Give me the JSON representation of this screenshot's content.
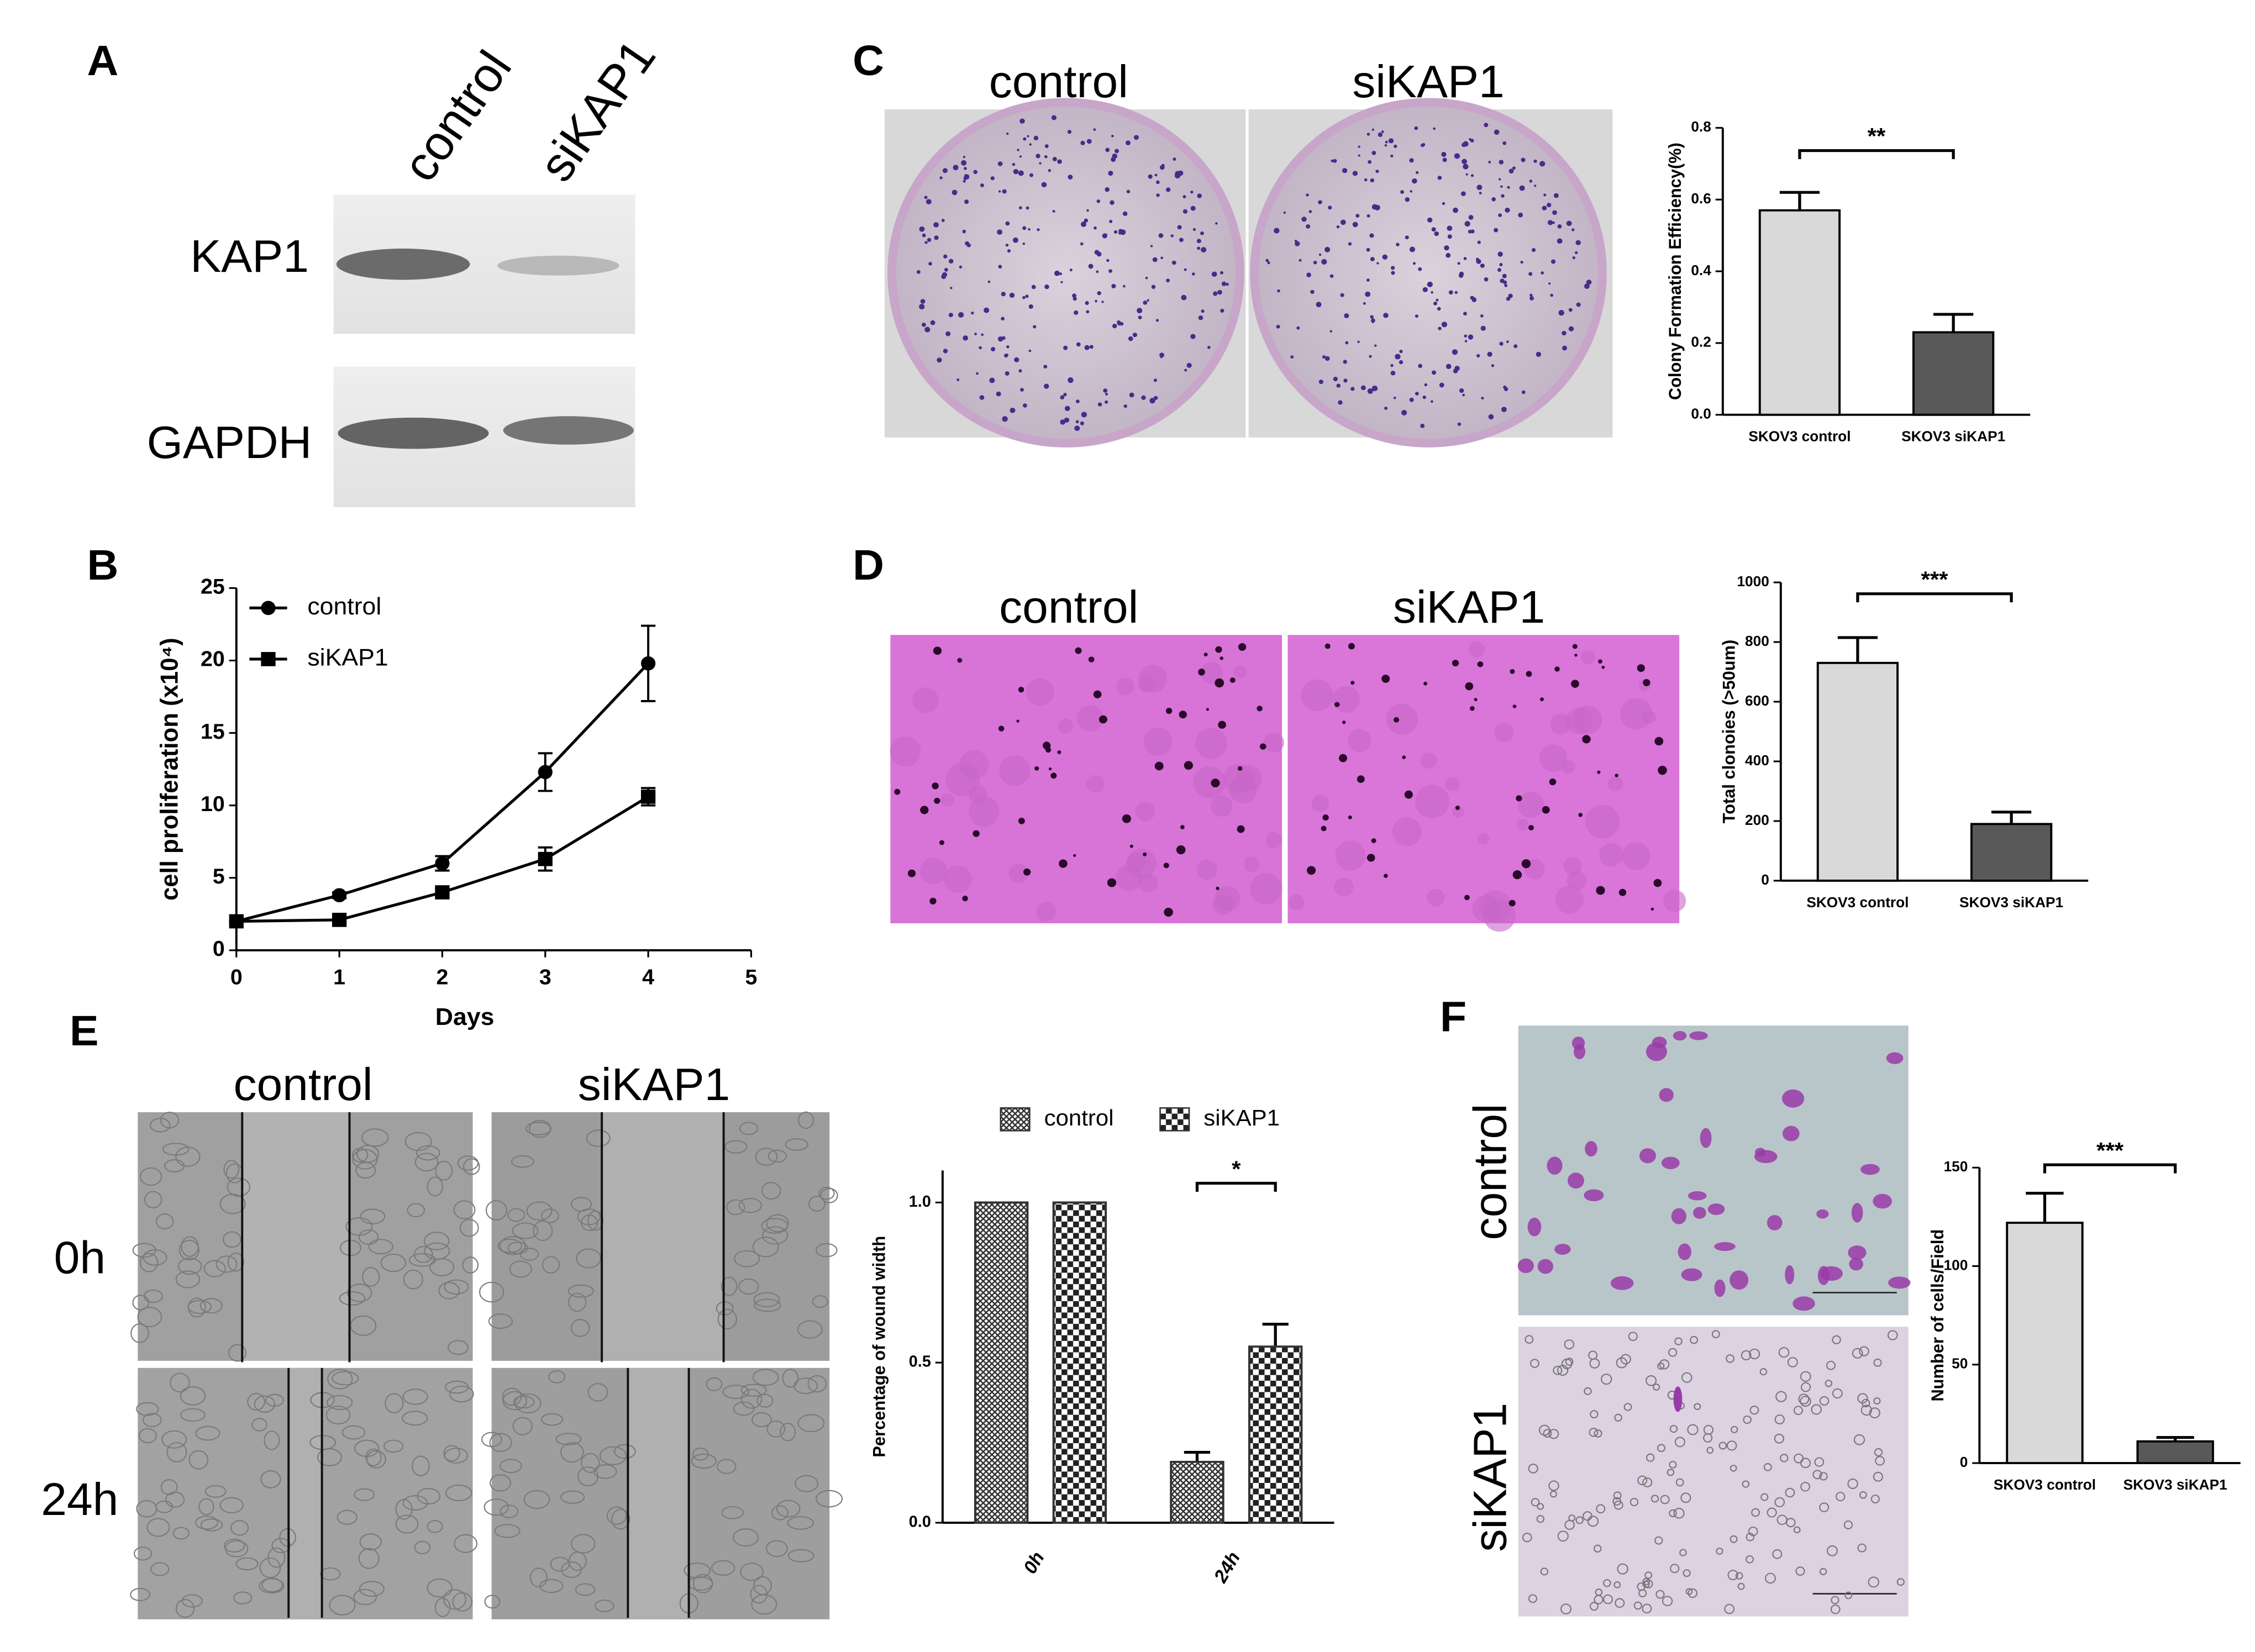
{
  "panel_labels": [
    "A",
    "B",
    "C",
    "D",
    "E",
    "F"
  ],
  "images": {
    "western_blot": {
      "lanes": [
        "control",
        "siKAP1"
      ],
      "bands": [
        "KAP1",
        "GAPDH"
      ]
    },
    "colony_plates": {
      "conditions": [
        "control",
        "siKAP1"
      ]
    },
    "soft_agar": {
      "conditions": [
        "control",
        "siKAP1"
      ]
    },
    "wound_healing": {
      "conditions": [
        "control",
        "siKAP1"
      ],
      "times": [
        "0h",
        "24h"
      ]
    },
    "transwell": {
      "conditions": [
        "control",
        "siKAP1"
      ]
    }
  },
  "chart_data": [
    {
      "type": "line",
      "x_label": "Days",
      "y_label": "cell proliferation (x10⁴)",
      "x": [
        0,
        1,
        2,
        3,
        4
      ],
      "xlim": [
        0,
        5
      ],
      "xticks": [
        0,
        1,
        2,
        3,
        4,
        5
      ],
      "ylim": [
        0,
        25
      ],
      "yticks": [
        0,
        5,
        10,
        15,
        20,
        25
      ],
      "series": [
        {
          "name": "control",
          "color": "#000000",
          "marker": "circle",
          "values": [
            2,
            3.8,
            6,
            12.3,
            19.8
          ],
          "errors": [
            0,
            0.2,
            0.5,
            1.3,
            2.6
          ]
        },
        {
          "name": "siKAP1",
          "color": "#000000",
          "marker": "square",
          "values": [
            2,
            2.1,
            4,
            6.3,
            10.6
          ],
          "errors": [
            0,
            0.2,
            0.3,
            0.8,
            0.6
          ]
        }
      ]
    },
    {
      "type": "bar",
      "y_label": "Colony Formation Efficiency(%)",
      "annotation": "**",
      "categories": [
        "SKOV3 control",
        "SKOV3 siKAP1"
      ],
      "values": [
        0.57,
        0.23
      ],
      "errors": [
        0.05,
        0.05
      ],
      "colors": [
        "#d9d9d9",
        "#595959"
      ],
      "ylim": [
        0,
        0.8
      ],
      "yticks": [
        {
          "value": 0,
          "label": "0.0"
        },
        0.2,
        0.4,
        0.6,
        0.8
      ]
    },
    {
      "type": "bar",
      "y_label": "Total clonoies (>50um)",
      "annotation": "***",
      "categories": [
        "SKOV3 control",
        "SKOV3 siKAP1"
      ],
      "values": [
        730,
        190
      ],
      "errors": [
        85,
        40
      ],
      "colors": [
        "#d9d9d9",
        "#595959"
      ],
      "ylim": [
        0,
        1000
      ],
      "yticks": [
        0,
        200,
        400,
        600,
        800,
        1000
      ]
    },
    {
      "type": "bar",
      "y_label": "Percentage of wound width",
      "annotation": "*",
      "categories": [
        "0h",
        "24h"
      ],
      "series": [
        {
          "name": "control",
          "color": "#333333",
          "hatch": "crosshatch",
          "values": [
            1.0,
            0.19
          ],
          "errors": [
            0,
            0.03
          ]
        },
        {
          "name": "siKAP1",
          "color": "#333333",
          "hatch": "checker",
          "values": [
            1.0,
            0.55
          ],
          "errors": [
            0,
            0.07
          ]
        }
      ],
      "ylim": [
        0,
        1.1
      ],
      "yticks": [
        {
          "value": 0,
          "label": "0.0"
        },
        0.5,
        {
          "value": 1,
          "label": "1.0"
        }
      ]
    },
    {
      "type": "bar",
      "y_label": "Number of cells/Field",
      "annotation": "***",
      "categories": [
        "SKOV3 control",
        "SKOV3 siKAP1"
      ],
      "values": [
        122,
        11
      ],
      "errors": [
        15,
        2
      ],
      "colors": [
        "#d9d9d9",
        "#595959"
      ],
      "ylim": [
        0,
        150
      ],
      "yticks": [
        0,
        50,
        100,
        150
      ]
    }
  ]
}
